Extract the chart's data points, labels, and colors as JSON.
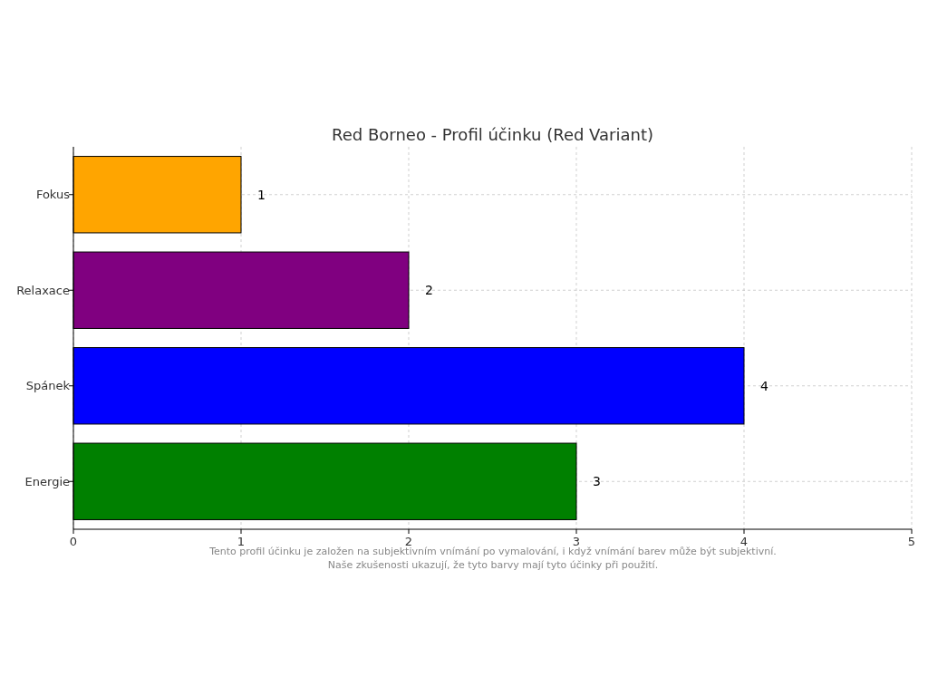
{
  "chart_data": {
    "type": "bar",
    "orientation": "horizontal",
    "title": "Red Borneo - Profil účinku (Red Variant)",
    "categories": [
      "Fokus",
      "Relaxace",
      "Spánek",
      "Energie"
    ],
    "values": [
      1,
      2,
      4,
      3
    ],
    "colors": [
      "#ffa500",
      "#800080",
      "#0000ff",
      "#008000"
    ],
    "xlim": [
      0,
      5
    ],
    "xticks": [
      0,
      1,
      2,
      3,
      4,
      5
    ],
    "grid": true,
    "data_labels": true,
    "annotations": [
      "Tento profil účinku je založen na subjektivním vnímání po vymalování, i když vnímání barev může být subjektivní.",
      "Naše zkušenosti ukazují, že tyto barvy mají tyto účinky při použití."
    ]
  }
}
